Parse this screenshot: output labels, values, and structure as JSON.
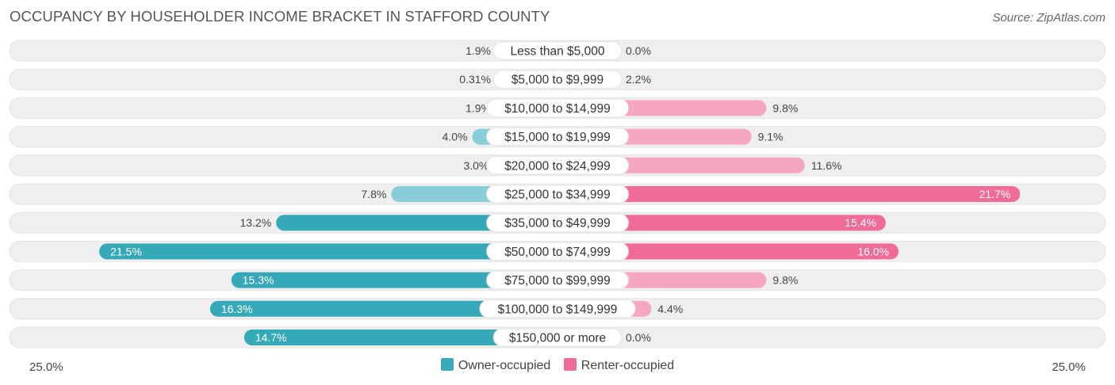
{
  "title": "OCCUPANCY BY HOUSEHOLDER INCOME BRACKET IN STAFFORD COUNTY",
  "source": "Source: ZipAtlas.com",
  "chart_data": {
    "type": "bar",
    "orientation": "horizontal-diverging",
    "title": "OCCUPANCY BY HOUSEHOLDER INCOME BRACKET IN STAFFORD COUNTY",
    "categories": [
      "Less than $5,000",
      "$5,000 to $9,999",
      "$10,000 to $14,999",
      "$15,000 to $19,999",
      "$20,000 to $24,999",
      "$25,000 to $34,999",
      "$35,000 to $49,999",
      "$50,000 to $74,999",
      "$75,000 to $99,999",
      "$100,000 to $149,999",
      "$150,000 or more"
    ],
    "series": [
      {
        "name": "Owner-occupied",
        "color": "#4bb3c2",
        "values": [
          1.9,
          0.31,
          1.9,
          4.0,
          3.0,
          7.8,
          13.2,
          21.5,
          15.3,
          16.3,
          14.7
        ],
        "labels": [
          "1.9%",
          "0.31%",
          "1.9%",
          "4.0%",
          "3.0%",
          "7.8%",
          "13.2%",
          "21.5%",
          "15.3%",
          "16.3%",
          "14.7%"
        ]
      },
      {
        "name": "Renter-occupied",
        "color": "#f07aa0",
        "values": [
          0.0,
          2.2,
          9.8,
          9.1,
          11.6,
          21.7,
          15.4,
          16.0,
          9.8,
          4.4,
          0.0
        ],
        "labels": [
          "0.0%",
          "2.2%",
          "9.8%",
          "9.1%",
          "11.6%",
          "21.7%",
          "15.4%",
          "16.0%",
          "9.8%",
          "4.4%",
          "0.0%"
        ]
      }
    ],
    "xlim": [
      -25,
      25
    ],
    "axis_min_label": "25.0%",
    "axis_max_label": "25.0%",
    "legend_position": "bottom-center"
  },
  "legend": {
    "owner_label": "Owner-occupied",
    "renter_label": "Renter-occupied",
    "owner_color": "#3aaab9",
    "renter_color": "#f06b97"
  }
}
